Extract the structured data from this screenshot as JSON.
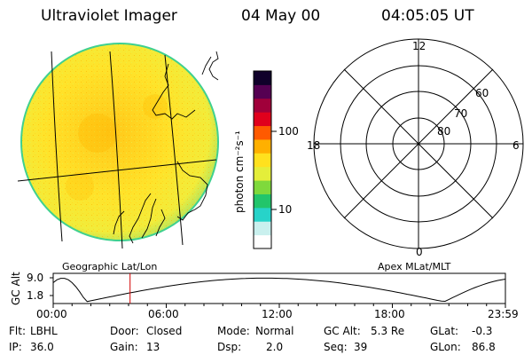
{
  "header": {
    "instrument": "Ultraviolet Imager",
    "date": "04 May 00",
    "time": "04:05:05 UT"
  },
  "geo_panel": {
    "label": "Geographic Lat/Lon"
  },
  "colorbar": {
    "unit_label": "photon cm⁻²s⁻¹",
    "tick_100": "100",
    "tick_10": "10",
    "colors": [
      "#ffffff",
      "#c9f0ee",
      "#27d3c9",
      "#22c56b",
      "#7fd93c",
      "#e4ee3a",
      "#ffe11e",
      "#ffb000",
      "#ff5a00",
      "#e0001c",
      "#a0003a",
      "#550052",
      "#10002a"
    ]
  },
  "polar_panel": {
    "label": "Apex MLat/MLT",
    "mlt_top": "12",
    "mlt_bottom": "0",
    "mlt_left": "18",
    "mlt_right": "6",
    "lat_60": "60",
    "lat_70": "70",
    "lat_80": "80"
  },
  "altitude_plot": {
    "ylabel": "GC Alt",
    "y_max": "9.0",
    "y_min": "1.8",
    "x_ticks": [
      "00:00",
      "06:00",
      "12:00",
      "18:00",
      "23:59"
    ],
    "current_time_marker_hours": 4.08
  },
  "status": {
    "flt_label": "Flt:",
    "flt_value": "LBHL",
    "ip_label": "IP:",
    "ip_value": "36.0",
    "door_label": "Door:",
    "door_value": "Closed",
    "gain_label": "Gain:",
    "gain_value": "13",
    "mode_label": "Mode:",
    "mode_value": "Normal",
    "dsp_label": "Dsp:",
    "dsp_value": "2.0",
    "gcalt_label": "GC Alt:",
    "gcalt_value": "5.3 Re",
    "seq_label": "Seq:",
    "seq_value": "39",
    "glat_label": "GLat:",
    "glat_value": "-0.3",
    "glon_label": "GLon:",
    "glon_value": "86.8"
  }
}
